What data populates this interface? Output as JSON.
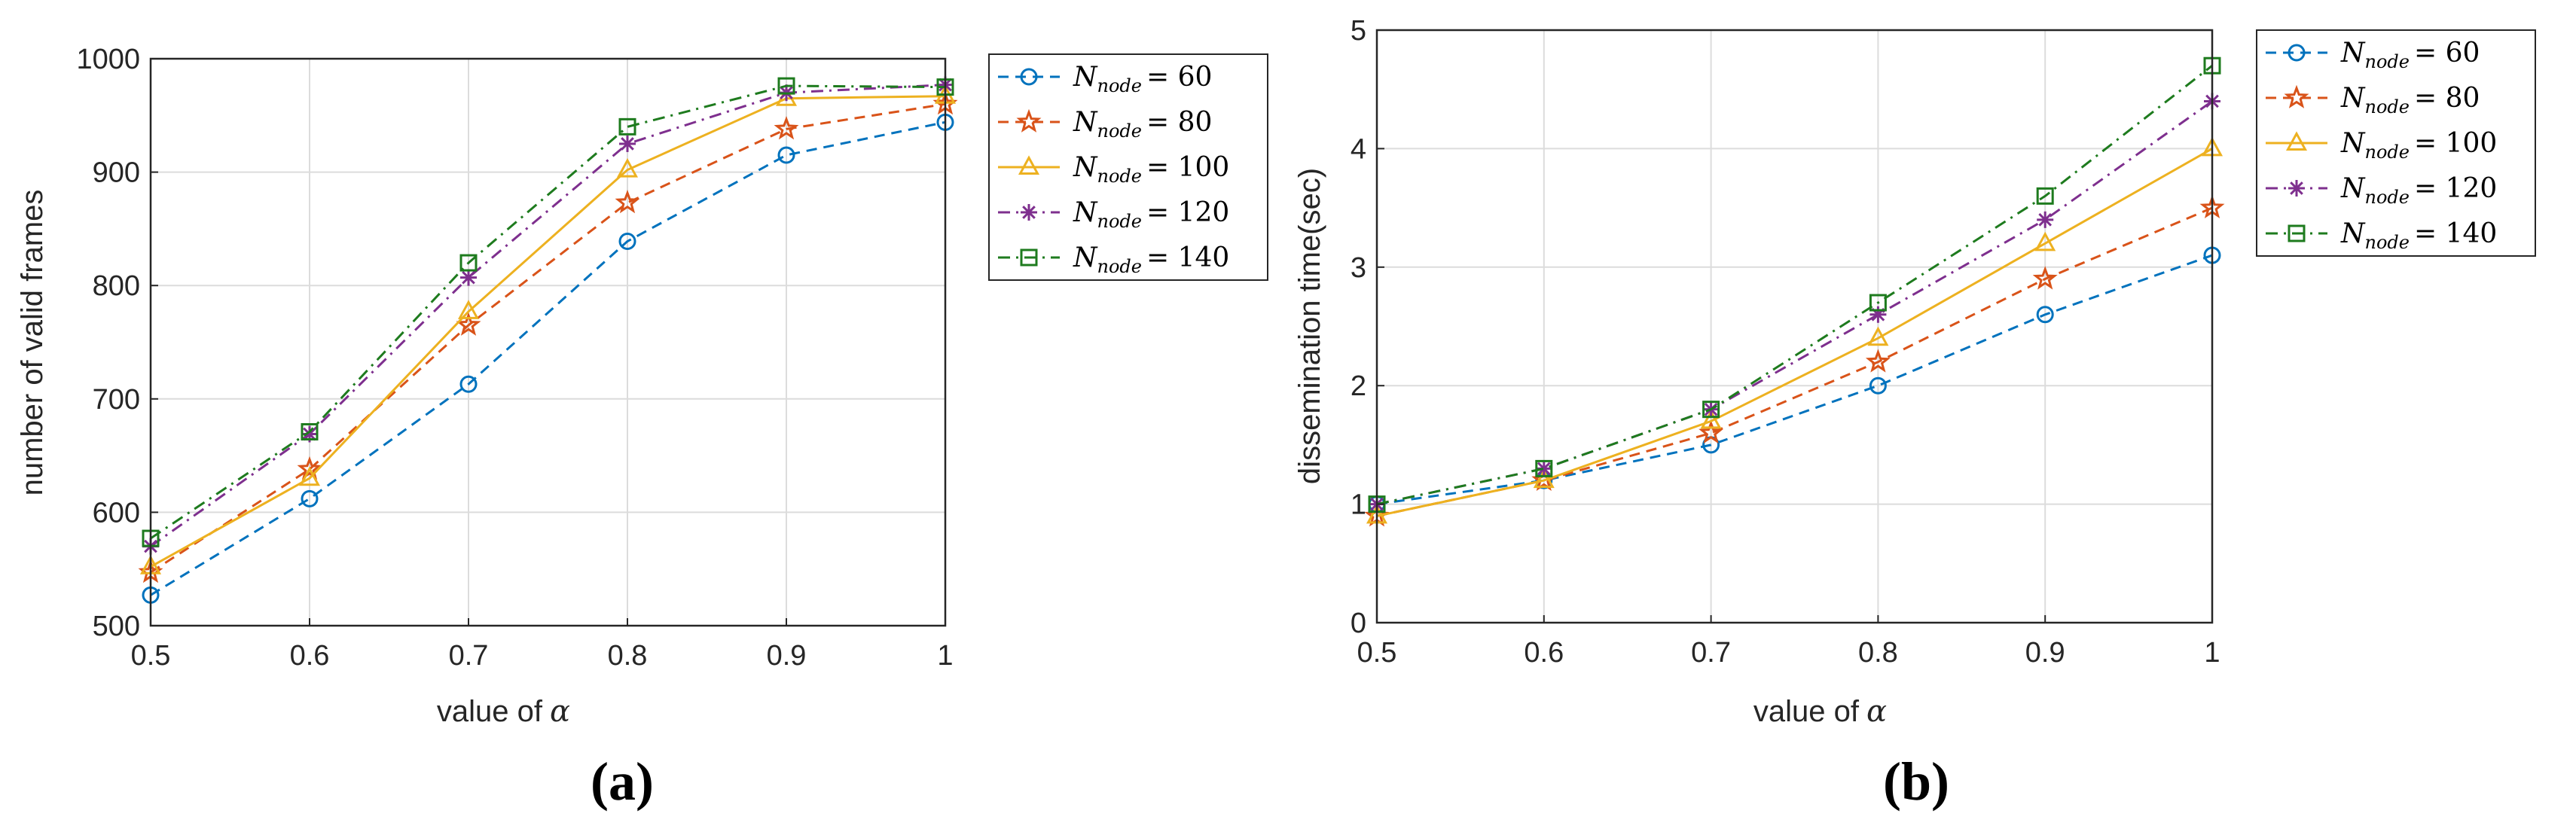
{
  "chart_data": [
    {
      "id": "a",
      "type": "line",
      "panel_label": "(a)",
      "xlabel": "value of",
      "xlabel_symbol": "α",
      "ylabel": "number of valid frames",
      "xlim": [
        0.5,
        1
      ],
      "ylim": [
        500,
        1000
      ],
      "xticks": [
        "0.5",
        "0.6",
        "0.7",
        "0.8",
        "0.9",
        "1"
      ],
      "yticks": [
        "500",
        "600",
        "700",
        "800",
        "900",
        "1000"
      ],
      "x": [
        0.5,
        0.6,
        0.7,
        0.8,
        0.9,
        1
      ],
      "legend_position": "outside-right-top",
      "grid": true,
      "series": [
        {
          "name": "N",
          "sub": "node",
          "eq": "= 60",
          "values": [
            527,
            612,
            713,
            839,
            915,
            944
          ],
          "color": "#0072BD",
          "marker": "circle",
          "dash": "dashed"
        },
        {
          "name": "N",
          "sub": "node",
          "eq": "= 80",
          "values": [
            547,
            638,
            765,
            873,
            938,
            960
          ],
          "color": "#D95319",
          "marker": "star",
          "dash": "dashed"
        },
        {
          "name": "N",
          "sub": "node",
          "eq": "= 100",
          "values": [
            552,
            630,
            777,
            902,
            965,
            967
          ],
          "color": "#EDB120",
          "marker": "triangle",
          "dash": "solid"
        },
        {
          "name": "N",
          "sub": "node",
          "eq": "= 120",
          "values": [
            570,
            669,
            807,
            925,
            970,
            977
          ],
          "color": "#7E2F8E",
          "marker": "asterisk",
          "dash": "dashdot"
        },
        {
          "name": "N",
          "sub": "node",
          "eq": "= 140",
          "values": [
            577,
            671,
            820,
            940,
            976,
            975
          ],
          "color": "#1E7B1E",
          "marker": "square",
          "dash": "dashdot"
        }
      ]
    },
    {
      "id": "b",
      "type": "line",
      "panel_label": "(b)",
      "xlabel": "value of",
      "xlabel_symbol": "α",
      "ylabel": "dissemination time(sec)",
      "xlim": [
        0.5,
        1
      ],
      "ylim": [
        0,
        5
      ],
      "xticks": [
        "0.5",
        "0.6",
        "0.7",
        "0.8",
        "0.9",
        "1"
      ],
      "yticks": [
        "0",
        "1",
        "2",
        "3",
        "4",
        "5"
      ],
      "x": [
        0.5,
        0.6,
        0.7,
        0.8,
        0.9,
        1
      ],
      "legend_position": "outside-right-top",
      "grid": true,
      "series": [
        {
          "name": "N",
          "sub": "node",
          "eq": "= 60",
          "values": [
            1.0,
            1.2,
            1.5,
            2.0,
            2.6,
            3.1
          ],
          "color": "#0072BD",
          "marker": "circle",
          "dash": "dashed"
        },
        {
          "name": "N",
          "sub": "node",
          "eq": "= 80",
          "values": [
            0.9,
            1.2,
            1.6,
            2.2,
            2.9,
            3.5
          ],
          "color": "#D95319",
          "marker": "star",
          "dash": "dashed"
        },
        {
          "name": "N",
          "sub": "node",
          "eq": "= 100",
          "values": [
            0.9,
            1.2,
            1.7,
            2.4,
            3.2,
            4.0
          ],
          "color": "#EDB120",
          "marker": "triangle",
          "dash": "solid"
        },
        {
          "name": "N",
          "sub": "node",
          "eq": "= 120",
          "values": [
            1.0,
            1.3,
            1.8,
            2.6,
            3.4,
            4.4
          ],
          "color": "#7E2F8E",
          "marker": "asterisk",
          "dash": "dashdot"
        },
        {
          "name": "N",
          "sub": "node",
          "eq": "= 140",
          "values": [
            1.0,
            1.3,
            1.8,
            2.7,
            3.6,
            4.7
          ],
          "color": "#1E7B1E",
          "marker": "square",
          "dash": "dashdot"
        }
      ]
    }
  ]
}
